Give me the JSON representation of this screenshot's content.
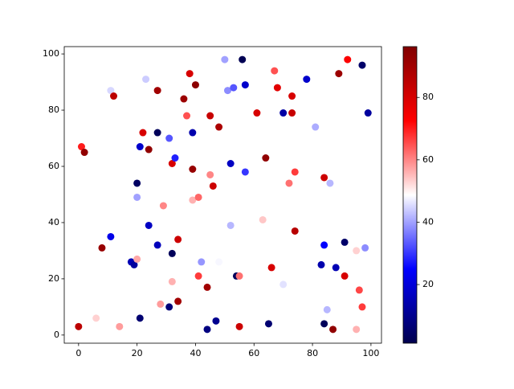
{
  "chart_data": {
    "type": "scatter",
    "colormap": "seismic",
    "x": [
      0,
      1,
      2,
      6,
      8,
      11,
      11,
      12,
      14,
      18,
      19,
      20,
      20,
      20,
      21,
      21,
      22,
      23,
      24,
      24,
      27,
      27,
      27,
      28,
      29,
      31,
      31,
      32,
      32,
      32,
      33,
      34,
      34,
      36,
      37,
      38,
      39,
      39,
      39,
      40,
      41,
      41,
      42,
      44,
      44,
      45,
      45,
      46,
      47,
      48,
      48,
      50,
      51,
      53,
      52,
      52,
      54,
      55,
      55,
      56,
      57,
      57,
      61,
      63,
      64,
      65,
      66,
      67,
      68,
      70,
      70,
      72,
      73,
      73,
      74,
      74,
      78,
      81,
      83,
      84,
      84,
      84,
      85,
      86,
      87,
      88,
      89,
      91,
      91,
      92,
      95,
      95,
      96,
      97,
      97,
      98,
      99
    ],
    "y": [
      3,
      67,
      65,
      6,
      31,
      35,
      87,
      85,
      3,
      26,
      25,
      27,
      49,
      54,
      67,
      6,
      72,
      91,
      66,
      39,
      87,
      72,
      32,
      11,
      46,
      70,
      10,
      29,
      61,
      19,
      63,
      34,
      12,
      84,
      78,
      93,
      72,
      59,
      48,
      89,
      49,
      21,
      26,
      17,
      2,
      78,
      57,
      53,
      5,
      74,
      26,
      98,
      87,
      88,
      61,
      39,
      21,
      21,
      3,
      98,
      89,
      58,
      79,
      41,
      63,
      4,
      24,
      94,
      88,
      79,
      18,
      54,
      85,
      79,
      58,
      37,
      91,
      74,
      25,
      32,
      4,
      56,
      9,
      54,
      2,
      24,
      93,
      33,
      21,
      98,
      30,
      2,
      16,
      10,
      96,
      31,
      79
    ],
    "c": [
      85,
      70,
      93,
      53,
      92,
      22,
      45,
      85,
      58,
      15,
      12,
      57,
      40,
      4,
      18,
      6,
      80,
      44,
      93,
      17,
      90,
      3,
      16,
      58,
      60,
      33,
      7,
      3,
      80,
      56,
      28,
      82,
      90,
      91,
      65,
      80,
      14,
      92,
      56,
      94,
      63,
      67,
      39,
      90,
      8,
      83,
      60,
      82,
      10,
      88,
      48,
      40,
      38,
      33,
      17,
      42,
      3,
      62,
      82,
      2,
      18,
      30,
      80,
      54,
      93,
      6,
      80,
      65,
      78,
      13,
      46,
      62,
      80,
      83,
      67,
      86,
      18,
      41,
      14,
      25,
      3,
      82,
      42,
      42,
      93,
      15,
      91,
      5,
      80,
      73,
      53,
      56,
      66,
      67,
      5,
      38,
      12
    ],
    "xlim": [
      -4.9,
      103.6
    ],
    "ylim": [
      -2.9,
      102.6
    ],
    "xticks": [
      0,
      20,
      40,
      60,
      80,
      100
    ],
    "yticks": [
      0,
      20,
      40,
      60,
      80,
      100
    ],
    "clim": [
      1.2,
      96.3
    ],
    "cticks": [
      20,
      40,
      60,
      80
    ]
  }
}
